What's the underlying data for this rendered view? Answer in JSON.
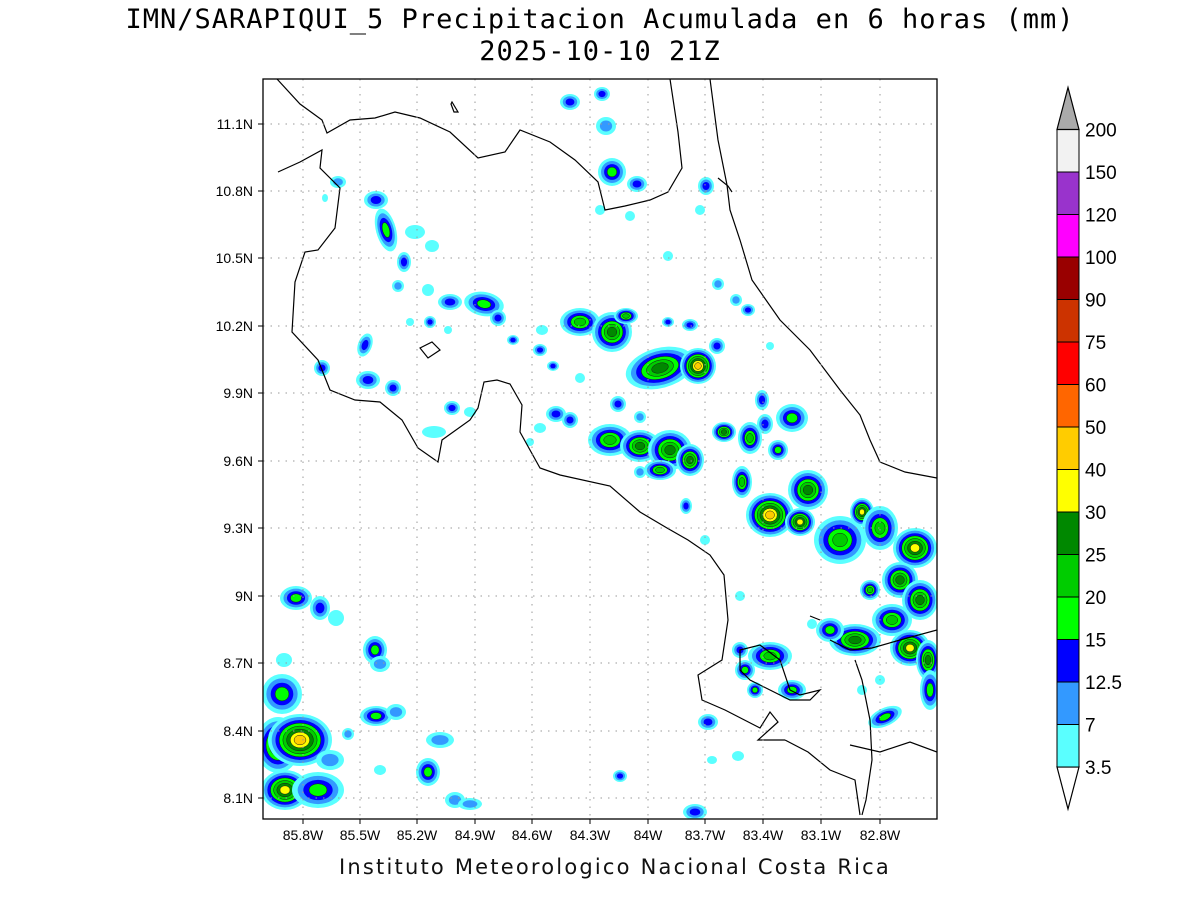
{
  "header": {
    "title": "IMN/SARAPIQUI_5 Precipitacion Acumulada en 6 horas (mm)",
    "datetime": "2025-10-10 21Z"
  },
  "footer": "Instituto Meteorologico Nacional Costa Rica",
  "map": {
    "lon_range": [
      -86.0,
      -83.0
    ],
    "lat_range": [
      8.0,
      11.3
    ],
    "grid": true,
    "lat_ticks": [
      "11.1N",
      "10.8N",
      "10.5N",
      "10.2N",
      "9.9N",
      "9.6N",
      "9.3N",
      "9N",
      "8.7N",
      "8.4N",
      "8.1N"
    ],
    "lon_ticks": [
      "85.8W",
      "85.5W",
      "85.2W",
      "84.9W",
      "84.6W",
      "84.3W",
      "84W",
      "83.7W",
      "83.4W",
      "83.1W",
      "82.8W"
    ]
  },
  "colorbar": {
    "levels": [
      "3.5",
      "7",
      "12.5",
      "15",
      "20",
      "25",
      "30",
      "40",
      "50",
      "60",
      "75",
      "90",
      "100",
      "120",
      "150",
      "200"
    ],
    "colors": [
      "#ffffff",
      "#5affff",
      "#3399ff",
      "#0000ff",
      "#00ff00",
      "#00cc00",
      "#008800",
      "#ffff00",
      "#ffcc00",
      "#ff6600",
      "#ff0000",
      "#cc3300",
      "#990000",
      "#ff00ff",
      "#9933cc",
      "#f2f2f2",
      "#aaaaaa"
    ]
  }
}
